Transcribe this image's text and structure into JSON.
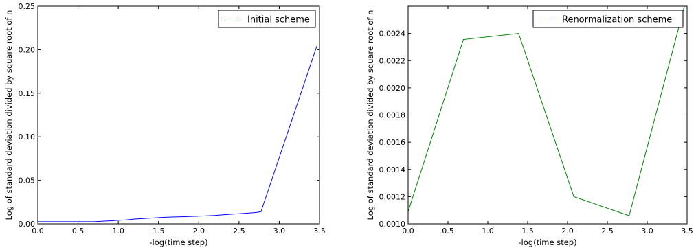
{
  "chart_data": [
    {
      "type": "line",
      "xlabel": "-log(time step)",
      "ylabel": "Log of standard deviation divided by square root of n",
      "xlim": [
        0,
        3.5
      ],
      "ylim": [
        0,
        0.25
      ],
      "xticks": [
        "0.0",
        "0.5",
        "1.0",
        "1.5",
        "2.0",
        "2.5",
        "3.0",
        "3.5"
      ],
      "yticks": [
        "0.00",
        "0.05",
        "0.10",
        "0.15",
        "0.20",
        "0.25"
      ],
      "legend": "top-right",
      "grid": false,
      "series": [
        {
          "name": "Initial scheme",
          "color": "#0000ff",
          "x": [
            0.0,
            0.693,
            0.916,
            1.099,
            1.204,
            1.386,
            1.504,
            1.609,
            1.792,
            1.946,
            2.079,
            2.197,
            2.303,
            2.398,
            2.485,
            2.565,
            2.639,
            2.708,
            2.773,
            3.466
          ],
          "y": [
            0.0025,
            0.0025,
            0.0035,
            0.0045,
            0.0055,
            0.0065,
            0.0072,
            0.0077,
            0.0082,
            0.0087,
            0.0092,
            0.0097,
            0.0105,
            0.011,
            0.0115,
            0.012,
            0.0125,
            0.013,
            0.014,
            0.204
          ]
        }
      ]
    },
    {
      "type": "line",
      "xlabel": "-log(time step)",
      "ylabel": "Log of standard deviation divided by square root of n",
      "xlim": [
        0,
        3.5
      ],
      "ylim": [
        0.001,
        0.0026
      ],
      "xticks": [
        "0.0",
        "0.5",
        "1.0",
        "1.5",
        "2.0",
        "2.5",
        "3.0",
        "3.5"
      ],
      "yticks": [
        "0.0010",
        "0.0012",
        "0.0014",
        "0.0016",
        "0.0018",
        "0.0020",
        "0.0022",
        "0.0024"
      ],
      "legend": "top-right",
      "grid": false,
      "series": [
        {
          "name": "Renormalization scheme",
          "color": "#008000",
          "x": [
            0.0,
            0.693,
            1.386,
            2.079,
            2.773,
            3.466
          ],
          "y": [
            0.00109,
            0.002355,
            0.0024,
            0.0012,
            0.00106,
            0.0026
          ]
        }
      ]
    }
  ]
}
